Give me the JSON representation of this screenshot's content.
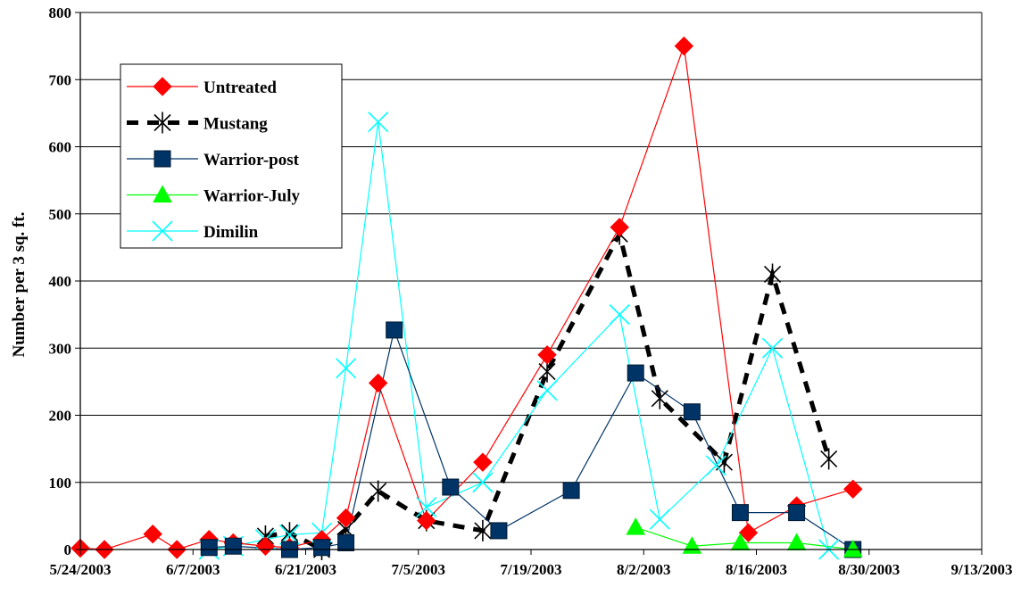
{
  "chart_data": {
    "type": "line",
    "ylabel": "Number per 3 sq. ft.",
    "xlabel": "",
    "ylim": [
      0,
      800
    ],
    "yticks": [
      0,
      100,
      200,
      300,
      400,
      500,
      600,
      700,
      800
    ],
    "xlim": [
      "2003-05-24",
      "2003-09-13"
    ],
    "xticks": [
      "5/24/2003",
      "6/7/2003",
      "6/21/2003",
      "7/5/2003",
      "7/19/2003",
      "8/2/2003",
      "8/16/2003",
      "8/30/2003",
      "9/13/2003"
    ],
    "grid": "horizontal",
    "legend_position": "top-left",
    "series": [
      {
        "name": "Untreated",
        "color": "#ff0000",
        "marker": "diamond",
        "dashed": false,
        "x": [
          "2003-05-24",
          "2003-05-27",
          "2003-06-02",
          "2003-06-05",
          "2003-06-09",
          "2003-06-12",
          "2003-06-16",
          "2003-06-19",
          "2003-06-23",
          "2003-06-26",
          "2003-06-30",
          "2003-07-06",
          "2003-07-13",
          "2003-07-21",
          "2003-07-30",
          "2003-08-07",
          "2003-08-15",
          "2003-08-21",
          "2003-08-28"
        ],
        "y": [
          2,
          0,
          23,
          0,
          15,
          10,
          5,
          3,
          15,
          47,
          248,
          43,
          130,
          290,
          480,
          750,
          25,
          65,
          90
        ]
      },
      {
        "name": "Mustang",
        "color": "#000000",
        "marker": "star",
        "dashed": true,
        "x": [
          "2003-06-16",
          "2003-06-19",
          "2003-06-23",
          "2003-06-26",
          "2003-06-30",
          "2003-07-06",
          "2003-07-13",
          "2003-07-21",
          "2003-07-30",
          "2003-08-04",
          "2003-08-12",
          "2003-08-18",
          "2003-08-25"
        ],
        "y": [
          20,
          25,
          0,
          30,
          87,
          43,
          28,
          265,
          470,
          225,
          130,
          410,
          135
        ]
      },
      {
        "name": "Warrior-post",
        "color": "#003366",
        "marker": "square",
        "dashed": false,
        "x": [
          "2003-06-09",
          "2003-06-12",
          "2003-06-19",
          "2003-06-23",
          "2003-06-26",
          "2003-07-02",
          "2003-07-09",
          "2003-07-15",
          "2003-07-24",
          "2003-08-01",
          "2003-08-08",
          "2003-08-14",
          "2003-08-21",
          "2003-08-28"
        ],
        "y": [
          3,
          5,
          0,
          3,
          10,
          327,
          93,
          28,
          88,
          263,
          205,
          55,
          55,
          0
        ]
      },
      {
        "name": "Warrior-July",
        "color": "#00ff00",
        "marker": "triangle",
        "dashed": false,
        "x": [
          "2003-08-01",
          "2003-08-08",
          "2003-08-14",
          "2003-08-21",
          "2003-08-28"
        ],
        "y": [
          33,
          5,
          10,
          10,
          0
        ]
      },
      {
        "name": "Dimilin",
        "color": "#00ffff",
        "marker": "x",
        "dashed": false,
        "x": [
          "2003-06-09",
          "2003-06-12",
          "2003-06-16",
          "2003-06-19",
          "2003-06-23",
          "2003-06-26",
          "2003-06-30",
          "2003-07-06",
          "2003-07-13",
          "2003-07-21",
          "2003-07-30",
          "2003-08-04",
          "2003-08-11",
          "2003-08-18",
          "2003-08-25"
        ],
        "y": [
          0,
          5,
          15,
          22,
          25,
          270,
          637,
          63,
          100,
          237,
          350,
          45,
          125,
          300,
          0
        ]
      }
    ]
  }
}
